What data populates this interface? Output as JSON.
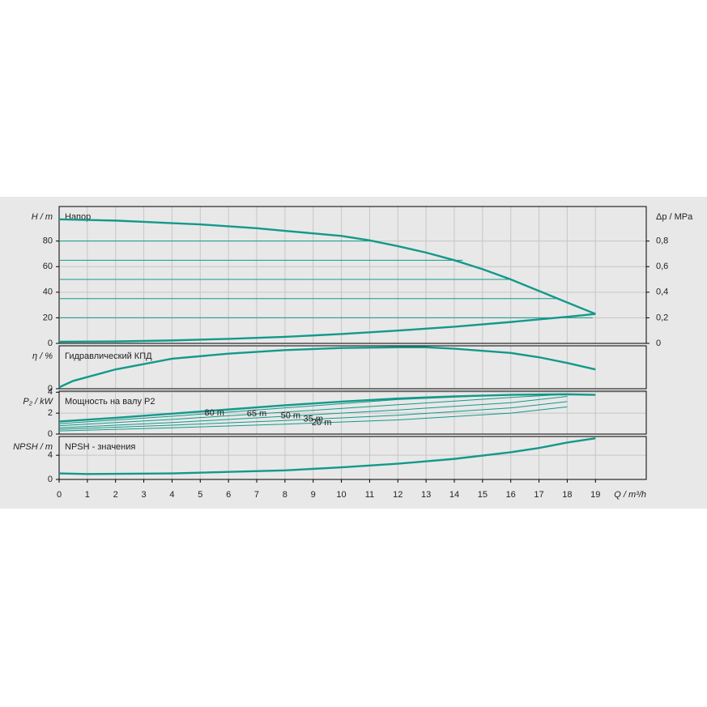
{
  "chart_data": [
    {
      "type": "line",
      "title": "Напор",
      "ylabel": "H / m",
      "y2label": "Δp / MPa",
      "xlim": [
        0,
        20.8
      ],
      "ylim": [
        0,
        107
      ],
      "yticks": [
        0,
        20,
        40,
        60,
        80
      ],
      "y2lim": [
        0,
        1.07
      ],
      "y2ticks": [
        0,
        {
          "value": 0.2,
          "label": "0,2"
        },
        {
          "value": 0.4,
          "label": "0,4"
        },
        {
          "value": 0.6,
          "label": "0,6"
        },
        {
          "value": 0.8,
          "label": "0,8"
        }
      ],
      "series": [
        {
          "color": "#13998a",
          "x": [
            0,
            1,
            2,
            3,
            4,
            5,
            6,
            7,
            8,
            9,
            10,
            11,
            12,
            13,
            14,
            15,
            16,
            17,
            18,
            19
          ],
          "values": [
            97,
            96.5,
            96,
            95,
            94,
            93,
            91.5,
            90,
            88,
            86,
            84,
            80.5,
            76,
            71,
            65,
            58,
            50,
            41,
            32,
            23
          ]
        },
        {
          "color": "#13998a",
          "x": [
            0,
            2,
            4,
            6,
            8,
            10,
            12,
            14,
            16,
            18,
            19
          ],
          "values": [
            1.3,
            1.5,
            2.3,
            3.5,
            5.1,
            7.3,
            10,
            13,
            16.7,
            20.8,
            23
          ]
        },
        {
          "color": "#13998a",
          "x": [
            0,
            11.1
          ],
          "values": [
            80,
            80
          ]
        },
        {
          "color": "#13998a",
          "x": [
            0,
            14.3
          ],
          "values": [
            65,
            65
          ]
        },
        {
          "color": "#13998a",
          "x": [
            0,
            16
          ],
          "values": [
            50,
            50
          ]
        },
        {
          "color": "#13998a",
          "x": [
            0,
            17.6
          ],
          "values": [
            35,
            35
          ]
        },
        {
          "color": "#13998a",
          "x": [
            0,
            18.9
          ],
          "values": [
            20,
            20
          ]
        }
      ]
    },
    {
      "type": "line",
      "title": "Гидравлический КПД",
      "ylabel": "η / %",
      "xlim": [
        0,
        20.8
      ],
      "ylim": [
        0,
        60
      ],
      "yticks": [
        0
      ],
      "series": [
        {
          "color": "#13998a",
          "x": [
            0,
            0.5,
            2,
            4,
            6,
            8,
            10,
            12,
            13,
            14,
            16,
            17,
            18,
            19
          ],
          "values": [
            2,
            11,
            27,
            42,
            49,
            54,
            57,
            58,
            58,
            56,
            50,
            44,
            36,
            27
          ]
        }
      ]
    },
    {
      "type": "line",
      "title": "Мощность на валу P2",
      "ylabel": "P₂ / kW",
      "xlim": [
        0,
        20.8
      ],
      "ylim": [
        0,
        4.1
      ],
      "yticks": [
        0,
        2,
        4
      ],
      "series": [
        {
          "color": "#13998a",
          "x": [
            0,
            2,
            4,
            6,
            8,
            10,
            12,
            14,
            16,
            18,
            19
          ],
          "values": [
            1.2,
            1.55,
            1.95,
            2.35,
            2.75,
            3.1,
            3.4,
            3.6,
            3.75,
            3.8,
            3.75
          ]
        },
        {
          "name": "80 m",
          "color": "#13998a",
          "x": [
            0,
            4,
            8,
            12,
            16,
            18
          ],
          "values": [
            1.0,
            1.7,
            2.5,
            3.3,
            3.75,
            3.8
          ]
        },
        {
          "name": "65 m",
          "color": "#13998a",
          "x": [
            0,
            4,
            8,
            12,
            16,
            18
          ],
          "values": [
            0.8,
            1.4,
            2.1,
            2.8,
            3.5,
            3.8
          ]
        },
        {
          "name": "50 m",
          "color": "#13998a",
          "x": [
            0,
            4,
            8,
            12,
            16,
            18
          ],
          "values": [
            0.6,
            1.1,
            1.7,
            2.3,
            3.0,
            3.6
          ]
        },
        {
          "name": "35 m",
          "color": "#13998a",
          "x": [
            0,
            4,
            8,
            12,
            16,
            18
          ],
          "values": [
            0.45,
            0.85,
            1.3,
            1.8,
            2.5,
            3.1
          ]
        },
        {
          "name": "20 m",
          "color": "#13998a",
          "x": [
            0,
            4,
            8,
            12,
            16,
            18
          ],
          "values": [
            0.3,
            0.6,
            0.95,
            1.35,
            2.0,
            2.6
          ]
        }
      ]
    },
    {
      "type": "line",
      "title": "NPSH - значения",
      "ylabel": "NPSH / m",
      "xlabel": "Q / m³/h",
      "xlim": [
        0,
        20.8
      ],
      "ylim": [
        0,
        7.1
      ],
      "yticks": [
        0,
        4
      ],
      "xticks": [
        0,
        1,
        2,
        3,
        4,
        5,
        6,
        7,
        8,
        9,
        10,
        11,
        12,
        13,
        14,
        15,
        16,
        17,
        18,
        19
      ],
      "series": [
        {
          "color": "#13998a",
          "x": [
            0,
            1,
            4,
            8,
            10,
            12,
            14,
            16,
            17,
            18,
            19
          ],
          "values": [
            1.0,
            0.9,
            1.0,
            1.5,
            2.0,
            2.6,
            3.4,
            4.5,
            5.2,
            6.1,
            6.8
          ]
        }
      ]
    }
  ]
}
